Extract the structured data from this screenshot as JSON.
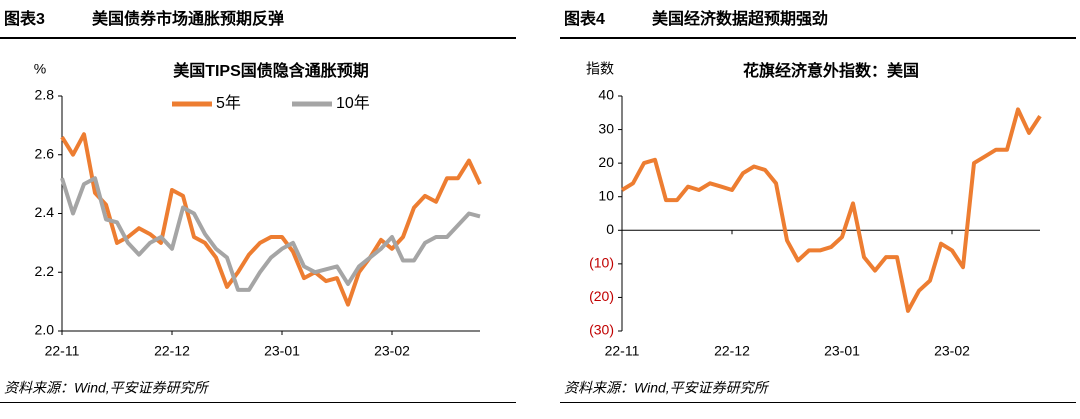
{
  "chart_data": [
    {
      "type": "line",
      "label": "图表3",
      "caption": "美国债券市场通胀预期反弹",
      "title": "美国TIPS国债隐含通胀预期",
      "ylabel": "%",
      "source": "资料来源：Wind,平安证券研究所",
      "categories": [
        "22-11",
        null,
        null,
        null,
        null,
        null,
        null,
        null,
        null,
        null,
        "22-12",
        null,
        null,
        null,
        null,
        null,
        null,
        null,
        null,
        null,
        "23-01",
        null,
        null,
        null,
        null,
        null,
        null,
        null,
        null,
        null,
        "23-02",
        null,
        null,
        null,
        null,
        null,
        null,
        null,
        null
      ],
      "series": [
        {
          "name": "5年",
          "color": "#ED7D31",
          "values": [
            2.66,
            2.6,
            2.67,
            2.47,
            2.43,
            2.3,
            2.32,
            2.35,
            2.33,
            2.3,
            2.48,
            2.46,
            2.32,
            2.3,
            2.25,
            2.15,
            2.2,
            2.26,
            2.3,
            2.32,
            2.32,
            2.27,
            2.18,
            2.2,
            2.17,
            2.18,
            2.09,
            2.2,
            2.25,
            2.31,
            2.28,
            2.32,
            2.42,
            2.46,
            2.44,
            2.52,
            2.52,
            2.58,
            2.5
          ]
        },
        {
          "name": "10年",
          "color": "#A5A5A5",
          "values": [
            2.52,
            2.4,
            2.5,
            2.52,
            2.38,
            2.37,
            2.3,
            2.26,
            2.3,
            2.32,
            2.28,
            2.42,
            2.4,
            2.33,
            2.28,
            2.25,
            2.14,
            2.14,
            2.2,
            2.25,
            2.28,
            2.3,
            2.22,
            2.2,
            2.21,
            2.22,
            2.16,
            2.22,
            2.25,
            2.28,
            2.32,
            2.24,
            2.24,
            2.3,
            2.32,
            2.32,
            2.36,
            2.4,
            2.39
          ]
        }
      ],
      "ylim": [
        2.0,
        2.8
      ],
      "yticks": [
        {
          "value": 2.0,
          "label": "2.0"
        },
        2.2,
        2.4,
        2.6,
        2.8
      ],
      "legend": "top"
    },
    {
      "type": "line",
      "label": "图表4",
      "caption": "美国经济数据超预期强劲",
      "title": "花旗经济意外指数：美国",
      "ylabel": "指数",
      "source": "资料来源：Wind,平安证券研究所",
      "categories": [
        "22-11",
        null,
        null,
        null,
        null,
        null,
        null,
        null,
        null,
        null,
        "22-12",
        null,
        null,
        null,
        null,
        null,
        null,
        null,
        null,
        null,
        "23-01",
        null,
        null,
        null,
        null,
        null,
        null,
        null,
        null,
        null,
        "23-02",
        null,
        null,
        null,
        null,
        null,
        null,
        null,
        null
      ],
      "series": [
        {
          "color": "#ED7D31",
          "values": [
            12,
            14,
            20,
            21,
            9,
            9,
            13,
            12,
            14,
            13,
            12,
            17,
            19,
            18,
            14,
            -3,
            -9,
            -6,
            -6,
            -5,
            -2,
            8,
            -8,
            -12,
            -8,
            -8,
            -24,
            -18,
            -15,
            -4,
            -6,
            -11,
            20,
            22,
            24,
            24,
            36,
            29,
            34
          ]
        }
      ],
      "ylim": [
        -30,
        40
      ],
      "yticks": [
        {
          "value": -30,
          "label": "(30)"
        },
        {
          "value": -20,
          "label": "(20)"
        },
        {
          "value": -10,
          "label": "(10)"
        },
        0,
        10,
        20,
        30,
        40
      ],
      "negative_tick_color": "#C00000"
    }
  ]
}
